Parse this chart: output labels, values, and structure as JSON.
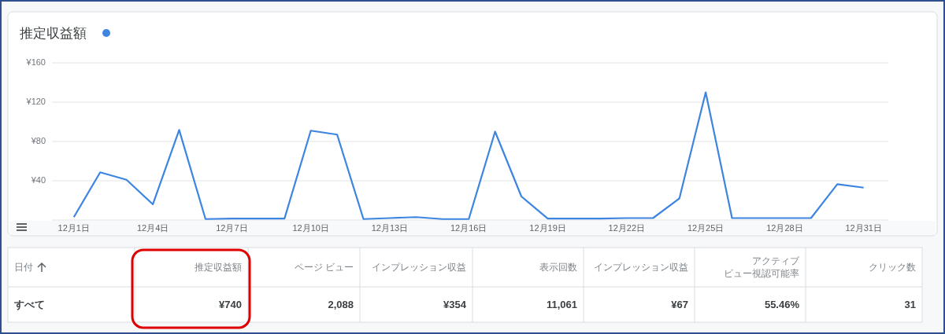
{
  "chart_data": [
    {
      "type": "line",
      "title": "推定収益額",
      "color": "#3d85e0",
      "categories": [
        "12月1日",
        null,
        null,
        "12月4日",
        null,
        null,
        "12月7日",
        null,
        null,
        "12月10日",
        null,
        null,
        "12月13日",
        null,
        null,
        "12月16日",
        null,
        null,
        "12月19日",
        null,
        null,
        "12月22日",
        null,
        null,
        "12月25日",
        null,
        null,
        "12月28日",
        null,
        null,
        "12月31日"
      ],
      "values": [
        3,
        48.6,
        41,
        16,
        91.7,
        1,
        1.5,
        1.5,
        1.5,
        91,
        87,
        1,
        2,
        3,
        1,
        1,
        90,
        24,
        1.5,
        1.5,
        1.5,
        2,
        2,
        22,
        130,
        2,
        2,
        2,
        2,
        36.5,
        33
      ],
      "ylim": [
        0,
        160
      ],
      "yticks": [
        {
          "value": 0,
          "label": null
        },
        {
          "value": 40,
          "label": "¥40"
        },
        {
          "value": 80,
          "label": "¥80"
        },
        {
          "value": 120,
          "label": "¥120"
        },
        {
          "value": 160,
          "label": "¥160"
        }
      ],
      "grid": "y"
    },
    {
      "type": "other",
      "categories": [
        "推定収益額",
        "ページ ビュー",
        "インプレッション収益",
        "表示回数",
        "インプレッション収益",
        "アクティブビュー視認可能率",
        "クリック数"
      ],
      "value_labels": [
        "¥740",
        "2,088",
        "¥354",
        "11,061",
        "¥67",
        "55.46%",
        "31"
      ],
      "annotations": [
        "日付",
        "すべて"
      ]
    }
  ]
}
